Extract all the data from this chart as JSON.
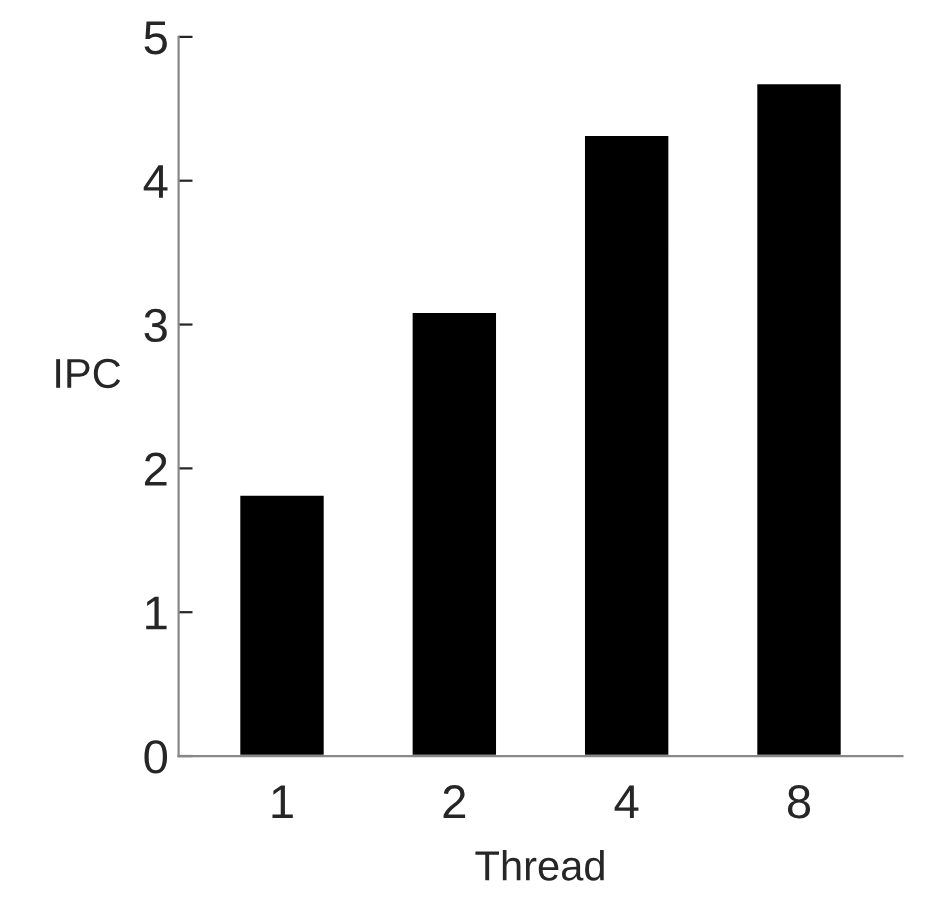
{
  "chart_data": {
    "type": "bar",
    "xlabel": "Thread",
    "ylabel": "IPC",
    "categories": [
      "1",
      "2",
      "4",
      "8"
    ],
    "values": [
      1.82,
      3.09,
      4.32,
      4.68
    ],
    "color": "#000000",
    "ylim": [
      0,
      5
    ],
    "yticks": [
      0,
      1,
      2,
      3,
      4,
      5
    ],
    "grid": false
  }
}
